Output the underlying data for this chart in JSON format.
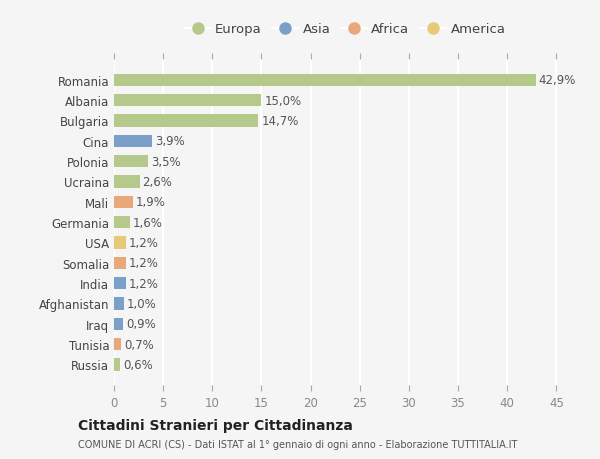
{
  "countries": [
    "Romania",
    "Albania",
    "Bulgaria",
    "Cina",
    "Polonia",
    "Ucraina",
    "Mali",
    "Germania",
    "USA",
    "Somalia",
    "India",
    "Afghanistan",
    "Iraq",
    "Tunisia",
    "Russia"
  ],
  "values": [
    42.9,
    15.0,
    14.7,
    3.9,
    3.5,
    2.6,
    1.9,
    1.6,
    1.2,
    1.2,
    1.2,
    1.0,
    0.9,
    0.7,
    0.6
  ],
  "labels": [
    "42,9%",
    "15,0%",
    "14,7%",
    "3,9%",
    "3,5%",
    "2,6%",
    "1,9%",
    "1,6%",
    "1,2%",
    "1,2%",
    "1,2%",
    "1,0%",
    "0,9%",
    "0,7%",
    "0,6%"
  ],
  "continents": [
    "Europa",
    "Europa",
    "Europa",
    "Asia",
    "Europa",
    "Europa",
    "Africa",
    "Europa",
    "America",
    "Africa",
    "Asia",
    "Asia",
    "Asia",
    "Africa",
    "Europa"
  ],
  "colors": {
    "Europa": "#b5c98a",
    "Asia": "#7a9fc8",
    "Africa": "#e8a87a",
    "America": "#e8c97a"
  },
  "xlim": [
    0,
    47
  ],
  "xticks": [
    0,
    5,
    10,
    15,
    20,
    25,
    30,
    35,
    40,
    45
  ],
  "background_color": "#f5f5f5",
  "grid_color": "#ffffff",
  "title": "Cittadini Stranieri per Cittadinanza",
  "subtitle": "COMUNE DI ACRI (CS) - Dati ISTAT al 1° gennaio di ogni anno - Elaborazione TUTTITALIA.IT",
  "bar_height": 0.6,
  "label_fontsize": 8.5,
  "tick_fontsize": 8.5,
  "legend_order": [
    "Europa",
    "Asia",
    "Africa",
    "America"
  ]
}
